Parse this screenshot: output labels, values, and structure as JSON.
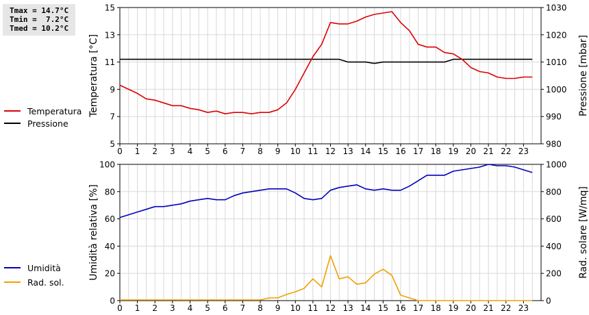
{
  "stats": {
    "tmax": "Tmax = 14.7°C",
    "tmin": "Tmin =  7.2°C",
    "tmed": "Tmed = 10.2°C"
  },
  "legend_top": [
    {
      "label": "Temperatura",
      "color": "#dd0000"
    },
    {
      "label": "Pressione",
      "color": "#000000"
    }
  ],
  "legend_bottom": [
    {
      "label": "Umidità",
      "color": "#0000bb"
    },
    {
      "label": "Rad. sol.",
      "color": "#f0a000"
    }
  ],
  "chart_data": [
    {
      "type": "line",
      "xlabel": "",
      "ylabel": "Temperatura [°C]",
      "y2label": "Pressione [mbar]",
      "xlim": [
        0,
        24
      ],
      "ylim": [
        5,
        15
      ],
      "y2lim": [
        980,
        1030
      ],
      "x_ticks": [
        "0",
        "1",
        "2",
        "3",
        "4",
        "5",
        "6",
        "7",
        "8",
        "9",
        "10",
        "11",
        "12",
        "13",
        "14",
        "15",
        "16",
        "17",
        "18",
        "19",
        "20",
        "21",
        "22",
        "23"
      ],
      "y_ticks": [
        "5",
        "7",
        "9",
        "11",
        "13",
        "15"
      ],
      "y2_ticks": [
        "980",
        "990",
        "1000",
        "1010",
        "1020",
        "1030"
      ],
      "grid": true,
      "series": [
        {
          "name": "Temperatura",
          "axis": "left",
          "color": "#dd0000",
          "x": [
            0,
            0.5,
            1,
            1.5,
            2,
            2.5,
            3,
            3.5,
            4,
            4.5,
            5,
            5.5,
            6,
            6.5,
            7,
            7.5,
            8,
            8.5,
            9,
            9.5,
            10,
            10.5,
            11,
            11.5,
            12,
            12.5,
            13,
            13.5,
            14,
            14.5,
            15,
            15.5,
            16,
            16.5,
            17,
            17.5,
            18,
            18.5,
            19,
            19.5,
            20,
            20.5,
            21,
            21.5,
            22,
            22.5,
            23,
            23.5
          ],
          "values": [
            9.3,
            9.0,
            8.7,
            8.3,
            8.2,
            8.0,
            7.8,
            7.8,
            7.6,
            7.5,
            7.3,
            7.4,
            7.2,
            7.3,
            7.3,
            7.2,
            7.3,
            7.3,
            7.5,
            8.0,
            9.0,
            10.2,
            11.4,
            12.3,
            13.9,
            13.8,
            13.8,
            14.0,
            14.3,
            14.5,
            14.6,
            14.7,
            13.9,
            13.3,
            12.3,
            12.1,
            12.1,
            11.7,
            11.6,
            11.2,
            10.6,
            10.3,
            10.2,
            9.9,
            9.8,
            9.8,
            9.9,
            9.9
          ]
        },
        {
          "name": "Pressione",
          "axis": "right",
          "color": "#000000",
          "x": [
            0,
            12.5,
            13,
            14,
            14.5,
            15,
            18,
            18.5,
            19,
            23.5
          ],
          "values": [
            1011,
            1011,
            1010,
            1010,
            1009.5,
            1010,
            1010,
            1010,
            1011,
            1011
          ]
        }
      ]
    },
    {
      "type": "line",
      "xlabel": "",
      "ylabel": "Umidità relativa [%]",
      "y2label": "Rad. solare [W/mq]",
      "xlim": [
        0,
        24
      ],
      "ylim": [
        0,
        100
      ],
      "y2lim": [
        0,
        1000
      ],
      "x_ticks": [
        "0",
        "1",
        "2",
        "3",
        "4",
        "5",
        "6",
        "7",
        "8",
        "9",
        "10",
        "11",
        "12",
        "13",
        "14",
        "15",
        "16",
        "17",
        "18",
        "19",
        "20",
        "21",
        "22",
        "23"
      ],
      "y_ticks": [
        "0",
        "20",
        "40",
        "60",
        "80",
        "100"
      ],
      "y2_ticks": [
        "0",
        "200",
        "400",
        "600",
        "800",
        "1000"
      ],
      "grid": true,
      "series": [
        {
          "name": "Umidità",
          "axis": "left",
          "color": "#0000bb",
          "x": [
            0,
            0.5,
            1,
            1.5,
            2,
            2.5,
            3,
            3.5,
            4,
            4.5,
            5,
            5.5,
            6,
            6.5,
            7,
            7.5,
            8,
            8.5,
            9,
            9.5,
            10,
            10.5,
            11,
            11.5,
            12,
            12.5,
            13,
            13.5,
            14,
            14.5,
            15,
            15.5,
            16,
            16.5,
            17,
            17.5,
            18,
            18.5,
            19,
            19.5,
            20,
            20.5,
            21,
            21.5,
            22,
            22.5,
            23,
            23.5
          ],
          "values": [
            61,
            63,
            65,
            67,
            69,
            69,
            70,
            71,
            73,
            74,
            75,
            74,
            74,
            77,
            79,
            80,
            81,
            82,
            82,
            82,
            79,
            75,
            74,
            75,
            81,
            83,
            84,
            85,
            82,
            81,
            82,
            81,
            81,
            84,
            88,
            92,
            92,
            92,
            95,
            96,
            97,
            98,
            100,
            99,
            99,
            98,
            96,
            94
          ]
        },
        {
          "name": "Rad. sol.",
          "axis": "right",
          "color": "#f0a000",
          "x": [
            0,
            0.5,
            1,
            1.5,
            2,
            2.5,
            3,
            3.5,
            4,
            4.5,
            5,
            5.5,
            6,
            6.5,
            7,
            7.5,
            8,
            8.5,
            9,
            9.5,
            10,
            10.5,
            11,
            11.5,
            12,
            12.5,
            13,
            13.5,
            14,
            14.5,
            15,
            15.5,
            16,
            16.5,
            17,
            17.5,
            18,
            18.5,
            19,
            19.5,
            20,
            20.5,
            21,
            21.5,
            22,
            22.5,
            23,
            23.5
          ],
          "values": [
            5,
            5,
            5,
            5,
            5,
            5,
            5,
            5,
            5,
            5,
            5,
            5,
            5,
            5,
            5,
            5,
            5,
            20,
            20,
            45,
            65,
            90,
            160,
            100,
            330,
            160,
            175,
            120,
            130,
            195,
            230,
            185,
            40,
            20,
            0,
            0,
            0,
            0,
            0,
            0,
            0,
            0,
            0,
            0,
            0,
            0,
            0,
            0
          ]
        }
      ]
    }
  ]
}
